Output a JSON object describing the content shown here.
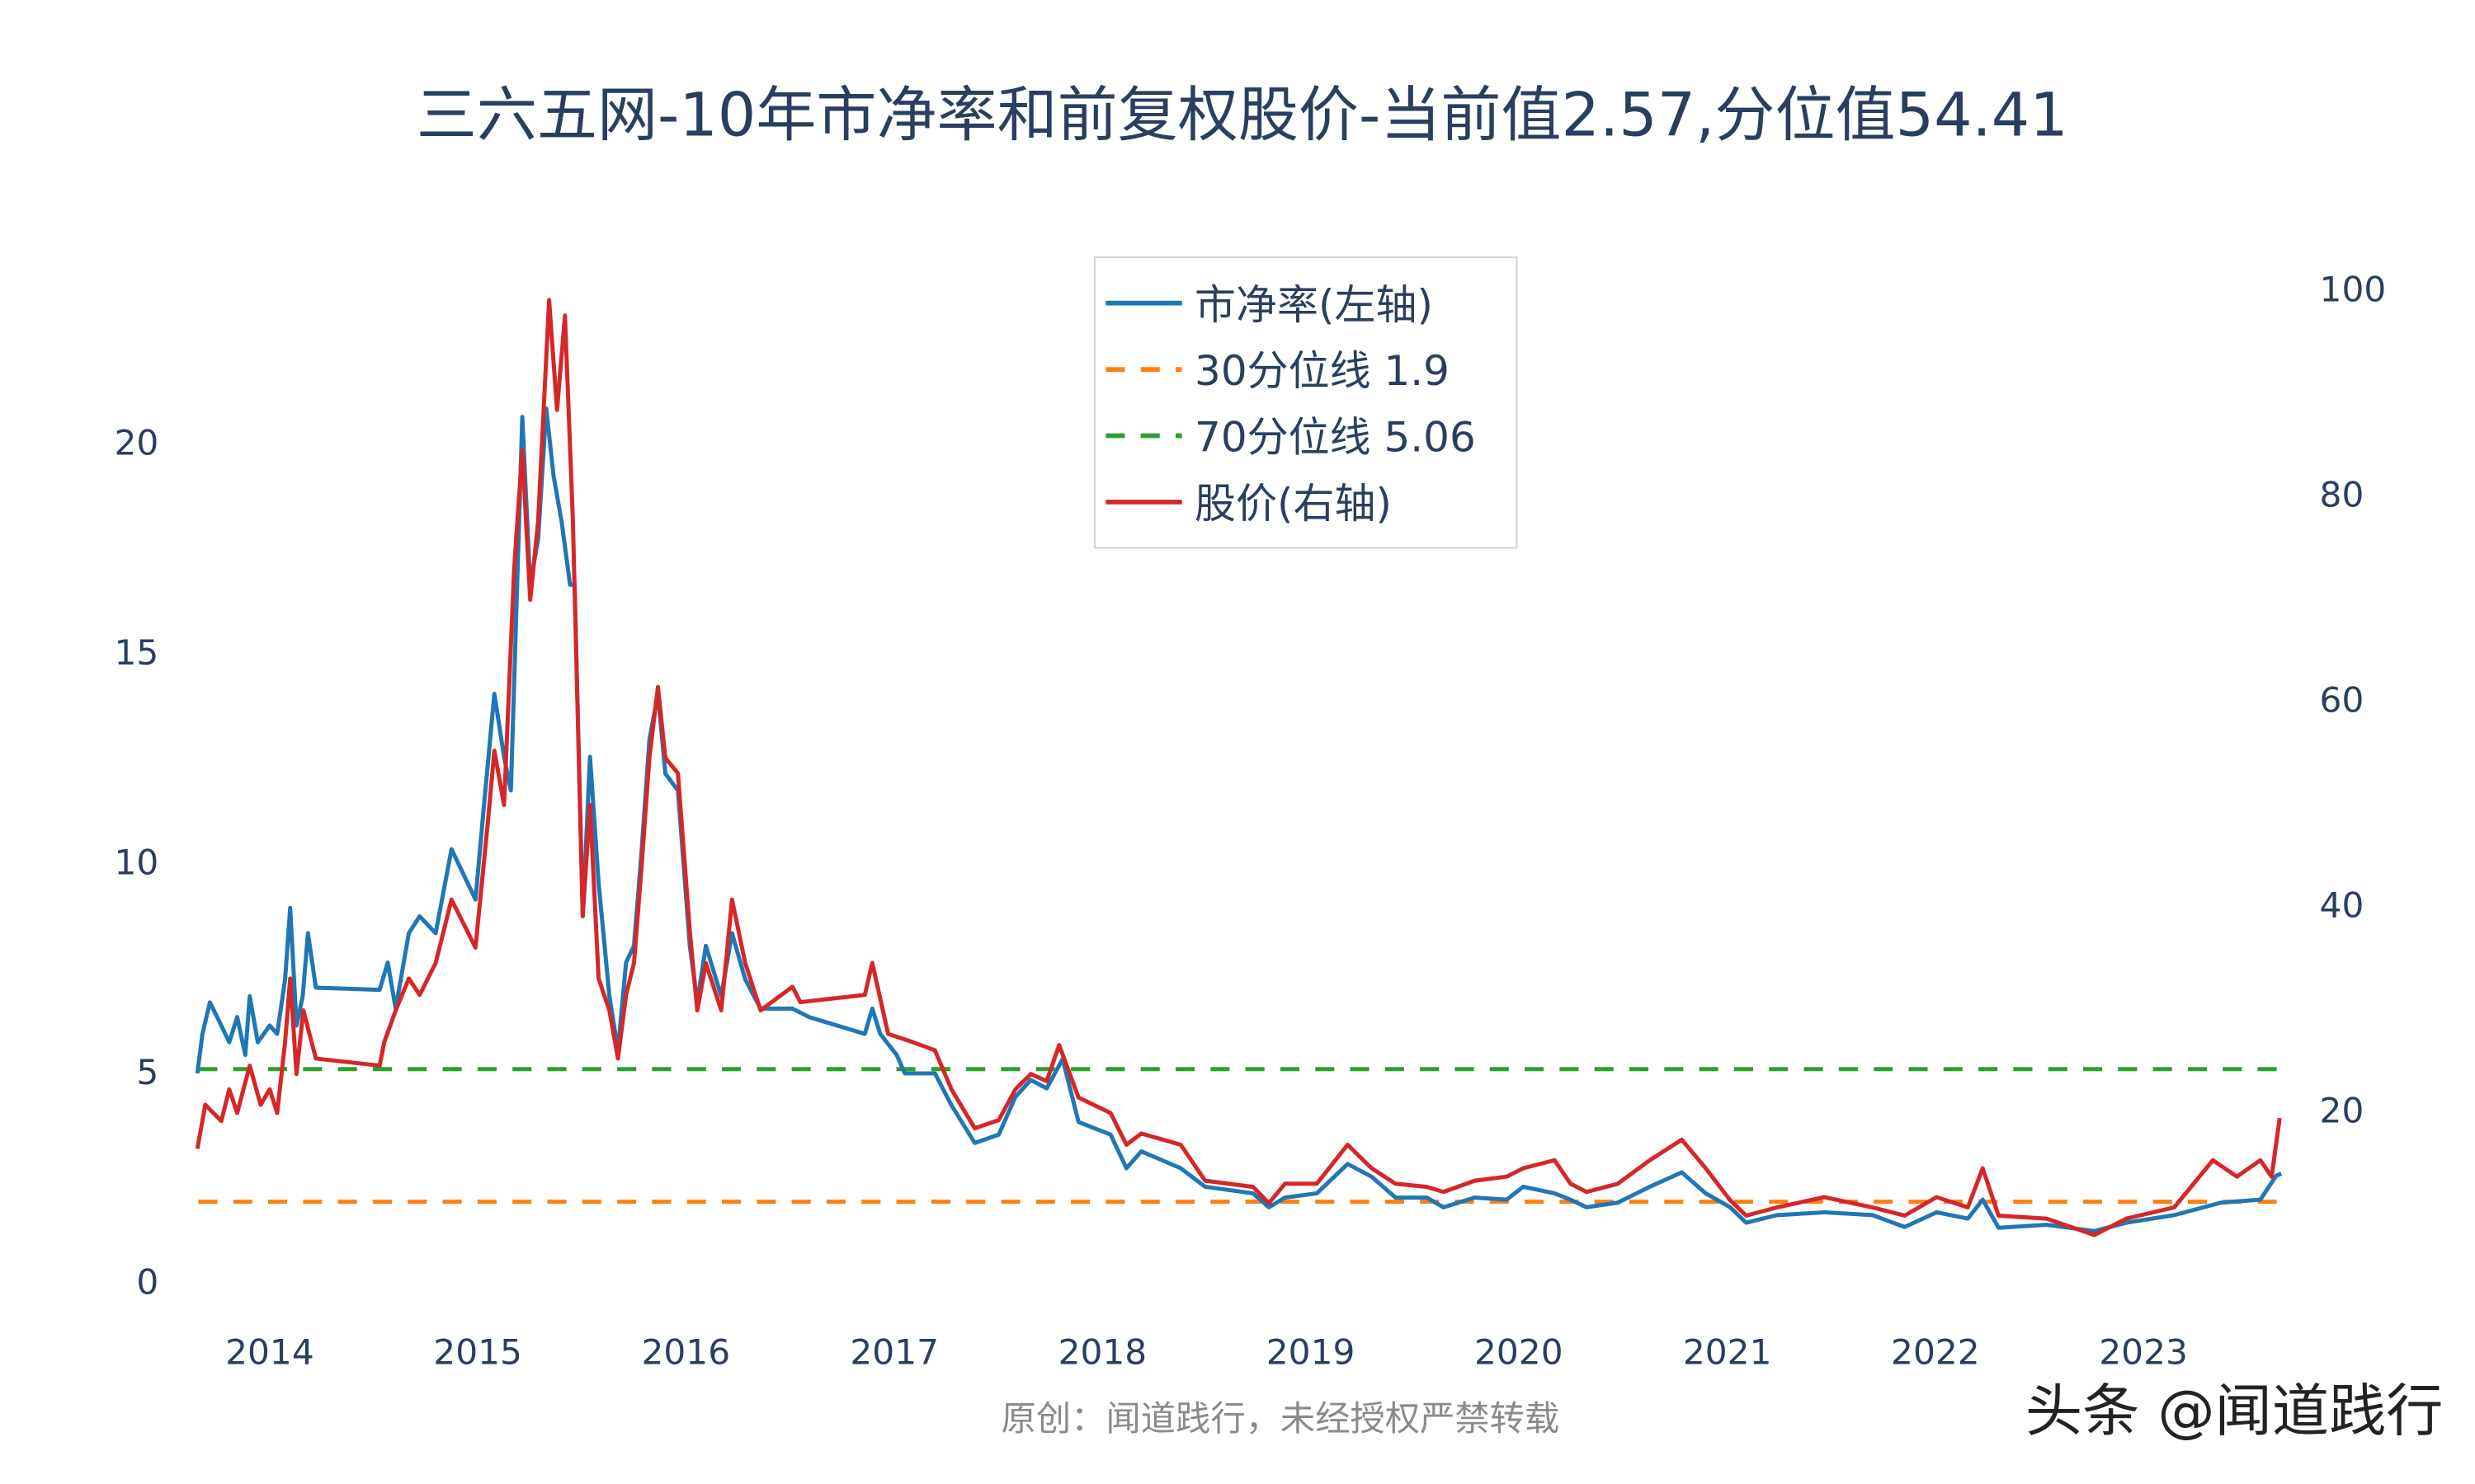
{
  "chart_data": {
    "type": "line",
    "title": "三六五网-10年市净率和前复权股价-当前值2.57,分位值54.41",
    "source_note": "原创：闻道践行，未经授权严禁转载",
    "watermark": "头条 @闻道践行",
    "xlim": [
      "2013-08-20",
      "2023-09-05"
    ],
    "x_ticks": [
      "2014",
      "2015",
      "2016",
      "2017",
      "2018",
      "2019",
      "2020",
      "2021",
      "2022",
      "2023"
    ],
    "y_left": {
      "ylim": [
        -0.8,
        23.65
      ],
      "ticks": [
        0,
        5,
        10,
        15,
        20
      ]
    },
    "y_right": {
      "ylim": [
        0,
        100
      ],
      "ticks": [
        20,
        40,
        60,
        80,
        100
      ]
    },
    "grid": false,
    "legend_position": "top-center",
    "series": [
      {
        "name": "市净率(左轴)",
        "axis": "left",
        "style": "solid",
        "color": "#1f77b4",
        "points": [
          [
            "2013-08-27",
            4.96
          ],
          [
            "2013-09-05",
            5.9
          ],
          [
            "2013-09-18",
            6.65
          ],
          [
            "2013-10-08",
            6.1
          ],
          [
            "2013-10-22",
            5.7
          ],
          [
            "2013-11-05",
            6.3
          ],
          [
            "2013-11-19",
            5.4
          ],
          [
            "2013-11-27",
            6.8
          ],
          [
            "2013-12-11",
            5.7
          ],
          [
            "2014-01-01",
            6.1
          ],
          [
            "2014-01-14",
            5.9
          ],
          [
            "2014-01-28",
            7.2
          ],
          [
            "2014-02-06",
            8.9
          ],
          [
            "2014-02-17",
            6.1
          ],
          [
            "2014-02-28",
            6.8
          ],
          [
            "2014-03-09",
            8.3
          ],
          [
            "2014-03-23",
            7.0
          ],
          [
            "2014-07-13",
            6.95
          ],
          [
            "2014-07-27",
            7.6
          ],
          [
            "2014-08-10",
            6.5
          ],
          [
            "2014-09-02",
            8.3
          ],
          [
            "2014-09-21",
            8.7
          ],
          [
            "2014-10-19",
            8.3
          ],
          [
            "2014-11-16",
            10.3
          ],
          [
            "2014-12-28",
            9.1
          ],
          [
            "2015-01-11",
            11.2
          ],
          [
            "2015-01-30",
            14.0
          ],
          [
            "2015-02-16",
            12.5
          ],
          [
            "2015-02-28",
            11.7
          ],
          [
            "2015-03-20",
            20.6
          ],
          [
            "2015-04-03",
            16.6
          ],
          [
            "2015-04-17",
            17.7
          ],
          [
            "2015-05-01",
            20.8
          ],
          [
            "2015-05-14",
            19.2
          ],
          [
            "2015-05-28",
            18.1
          ],
          [
            "2015-06-12",
            16.6
          ],
          [
            "2015-06-20",
            16.6
          ],
          [
            "2015-07-04",
            8.7
          ],
          [
            "2015-07-17",
            12.5
          ],
          [
            "2015-08-01",
            9.5
          ],
          [
            "2015-08-20",
            6.8
          ],
          [
            "2015-09-04",
            5.5
          ],
          [
            "2015-09-18",
            7.6
          ],
          [
            "2015-10-02",
            8.0
          ],
          [
            "2015-10-15",
            10.2
          ],
          [
            "2015-10-29",
            12.9
          ],
          [
            "2015-11-13",
            14.0
          ],
          [
            "2015-11-26",
            12.1
          ],
          [
            "2015-12-18",
            11.7
          ],
          [
            "2016-01-08",
            8.0
          ],
          [
            "2016-01-21",
            6.65
          ],
          [
            "2016-02-05",
            8.0
          ],
          [
            "2016-03-03",
            6.8
          ],
          [
            "2016-03-22",
            8.3
          ],
          [
            "2016-04-14",
            7.2
          ],
          [
            "2016-05-11",
            6.5
          ],
          [
            "2016-07-06",
            6.5
          ],
          [
            "2016-08-04",
            6.3
          ],
          [
            "2016-11-10",
            5.9
          ],
          [
            "2016-11-23",
            6.5
          ],
          [
            "2016-12-07",
            5.9
          ],
          [
            "2017-01-05",
            5.4
          ],
          [
            "2017-01-19",
            4.96
          ],
          [
            "2017-03-13",
            4.96
          ],
          [
            "2017-04-11",
            4.2
          ],
          [
            "2017-05-22",
            3.3
          ],
          [
            "2017-07-03",
            3.5
          ],
          [
            "2017-08-01",
            4.4
          ],
          [
            "2017-08-28",
            4.8
          ],
          [
            "2017-09-25",
            4.6
          ],
          [
            "2017-10-23",
            5.3
          ],
          [
            "2017-11-20",
            3.8
          ],
          [
            "2018-01-15",
            3.5
          ],
          [
            "2018-02-12",
            2.7
          ],
          [
            "2018-03-10",
            3.1
          ],
          [
            "2018-05-18",
            2.7
          ],
          [
            "2018-06-30",
            2.26
          ],
          [
            "2018-09-22",
            2.1
          ],
          [
            "2018-10-20",
            1.77
          ],
          [
            "2018-11-17",
            2.0
          ],
          [
            "2019-01-12",
            2.1
          ],
          [
            "2019-03-07",
            2.8
          ],
          [
            "2019-04-18",
            2.5
          ],
          [
            "2019-05-30",
            2.0
          ],
          [
            "2019-07-24",
            2.0
          ],
          [
            "2019-08-22",
            1.77
          ],
          [
            "2019-10-16",
            2.0
          ],
          [
            "2019-12-11",
            1.95
          ],
          [
            "2020-01-09",
            2.26
          ],
          [
            "2020-03-04",
            2.1
          ],
          [
            "2020-04-01",
            1.95
          ],
          [
            "2020-04-29",
            1.77
          ],
          [
            "2020-06-23",
            1.88
          ],
          [
            "2020-08-18",
            2.26
          ],
          [
            "2020-10-13",
            2.6
          ],
          [
            "2020-11-24",
            2.1
          ],
          [
            "2021-01-06",
            1.77
          ],
          [
            "2021-02-03",
            1.4
          ],
          [
            "2021-03-29",
            1.58
          ],
          [
            "2021-06-20",
            1.65
          ],
          [
            "2021-09-13",
            1.58
          ],
          [
            "2021-11-08",
            1.3
          ],
          [
            "2022-01-03",
            1.65
          ],
          [
            "2022-02-27",
            1.5
          ],
          [
            "2022-03-25",
            1.95
          ],
          [
            "2022-04-22",
            1.28
          ],
          [
            "2022-07-15",
            1.35
          ],
          [
            "2022-10-07",
            1.2
          ],
          [
            "2022-12-02",
            1.4
          ],
          [
            "2023-02-24",
            1.58
          ],
          [
            "2023-05-17",
            1.88
          ],
          [
            "2023-07-25",
            1.95
          ],
          [
            "2023-08-22",
            2.52
          ],
          [
            "2023-08-31",
            2.57
          ]
        ]
      },
      {
        "name": "30分位线 1.9",
        "axis": "left",
        "style": "dash",
        "color": "#ff7f0e",
        "value": 1.9
      },
      {
        "name": "70分位线 5.06",
        "axis": "left",
        "style": "dash",
        "color": "#2ca02c",
        "value": 5.06
      },
      {
        "name": "股价(右轴)",
        "axis": "right",
        "style": "solid",
        "color": "#d62728",
        "points": [
          [
            "2013-08-27",
            16.2
          ],
          [
            "2013-09-10",
            20.5
          ],
          [
            "2013-10-08",
            18.9
          ],
          [
            "2013-10-22",
            22.0
          ],
          [
            "2013-11-05",
            19.7
          ],
          [
            "2013-11-27",
            24.3
          ],
          [
            "2013-12-16",
            20.5
          ],
          [
            "2014-01-01",
            22.0
          ],
          [
            "2014-01-14",
            19.7
          ],
          [
            "2014-01-28",
            26.6
          ],
          [
            "2014-02-06",
            32.8
          ],
          [
            "2014-02-17",
            23.5
          ],
          [
            "2014-03-01",
            29.7
          ],
          [
            "2014-03-23",
            25.0
          ],
          [
            "2014-07-13",
            24.3
          ],
          [
            "2014-07-21",
            26.6
          ],
          [
            "2014-08-10",
            29.7
          ],
          [
            "2014-09-02",
            32.8
          ],
          [
            "2014-09-21",
            31.2
          ],
          [
            "2014-10-19",
            34.3
          ],
          [
            "2014-11-16",
            40.5
          ],
          [
            "2014-12-28",
            35.8
          ],
          [
            "2015-01-19",
            48.2
          ],
          [
            "2015-01-30",
            55.0
          ],
          [
            "2015-02-16",
            49.7
          ],
          [
            "2015-03-06",
            72.8
          ],
          [
            "2015-03-20",
            84.3
          ],
          [
            "2015-04-03",
            69.7
          ],
          [
            "2015-04-17",
            77.4
          ],
          [
            "2015-05-06",
            98.9
          ],
          [
            "2015-05-20",
            88.2
          ],
          [
            "2015-06-03",
            97.4
          ],
          [
            "2015-06-17",
            77.4
          ],
          [
            "2015-07-04",
            38.9
          ],
          [
            "2015-07-17",
            49.7
          ],
          [
            "2015-08-01",
            32.8
          ],
          [
            "2015-08-20",
            29.7
          ],
          [
            "2015-09-04",
            25.0
          ],
          [
            "2015-09-18",
            31.2
          ],
          [
            "2015-10-02",
            34.3
          ],
          [
            "2015-10-15",
            43.5
          ],
          [
            "2015-10-29",
            54.3
          ],
          [
            "2015-11-13",
            61.2
          ],
          [
            "2015-11-26",
            54.3
          ],
          [
            "2015-12-18",
            52.8
          ],
          [
            "2016-01-08",
            37.4
          ],
          [
            "2016-01-21",
            29.7
          ],
          [
            "2016-02-05",
            34.3
          ],
          [
            "2016-03-03",
            29.7
          ],
          [
            "2016-03-22",
            40.5
          ],
          [
            "2016-04-14",
            34.3
          ],
          [
            "2016-05-11",
            29.7
          ],
          [
            "2016-07-06",
            32.0
          ],
          [
            "2016-07-20",
            30.5
          ],
          [
            "2016-11-10",
            31.2
          ],
          [
            "2016-11-23",
            34.3
          ],
          [
            "2016-12-21",
            27.4
          ],
          [
            "2017-02-02",
            26.6
          ],
          [
            "2017-03-13",
            25.8
          ],
          [
            "2017-04-11",
            22.0
          ],
          [
            "2017-05-22",
            18.2
          ],
          [
            "2017-07-03",
            19.0
          ],
          [
            "2017-08-01",
            22.0
          ],
          [
            "2017-08-28",
            23.5
          ],
          [
            "2017-09-25",
            22.8
          ],
          [
            "2017-10-17",
            26.3
          ],
          [
            "2017-11-20",
            21.2
          ],
          [
            "2018-01-15",
            19.7
          ],
          [
            "2018-02-12",
            16.6
          ],
          [
            "2018-03-10",
            17.7
          ],
          [
            "2018-05-18",
            16.6
          ],
          [
            "2018-06-30",
            13.1
          ],
          [
            "2018-09-22",
            12.5
          ],
          [
            "2018-10-20",
            10.9
          ],
          [
            "2018-11-17",
            12.8
          ],
          [
            "2019-01-12",
            12.8
          ],
          [
            "2019-03-07",
            16.6
          ],
          [
            "2019-04-18",
            14.3
          ],
          [
            "2019-05-30",
            12.8
          ],
          [
            "2019-07-24",
            12.5
          ],
          [
            "2019-08-22",
            12.0
          ],
          [
            "2019-10-16",
            13.1
          ],
          [
            "2019-12-11",
            13.5
          ],
          [
            "2020-01-09",
            14.3
          ],
          [
            "2020-03-04",
            15.1
          ],
          [
            "2020-04-01",
            12.8
          ],
          [
            "2020-04-29",
            12.0
          ],
          [
            "2020-06-23",
            12.8
          ],
          [
            "2020-08-18",
            15.1
          ],
          [
            "2020-10-13",
            17.1
          ],
          [
            "2020-11-24",
            14.3
          ],
          [
            "2021-01-06",
            11.2
          ],
          [
            "2021-02-03",
            9.7
          ],
          [
            "2021-03-29",
            10.5
          ],
          [
            "2021-06-20",
            11.5
          ],
          [
            "2021-09-13",
            10.5
          ],
          [
            "2021-11-08",
            9.7
          ],
          [
            "2022-01-03",
            11.5
          ],
          [
            "2022-02-27",
            10.5
          ],
          [
            "2022-03-25",
            14.3
          ],
          [
            "2022-04-22",
            9.7
          ],
          [
            "2022-07-15",
            9.4
          ],
          [
            "2022-10-07",
            7.8
          ],
          [
            "2022-12-02",
            9.4
          ],
          [
            "2023-02-24",
            10.5
          ],
          [
            "2023-05-03",
            15.1
          ],
          [
            "2023-06-14",
            13.5
          ],
          [
            "2023-07-25",
            15.1
          ],
          [
            "2023-08-14",
            13.5
          ],
          [
            "2023-08-28",
            19.2
          ]
        ]
      }
    ]
  }
}
